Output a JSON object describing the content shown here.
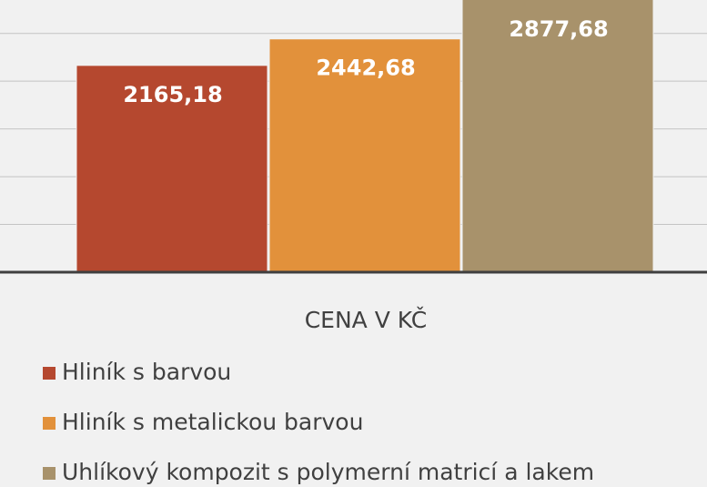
{
  "chart_data": {
    "type": "bar",
    "categories": [
      "CENA V KČ"
    ],
    "series": [
      {
        "name": "Hliník s barvou",
        "color": "#b5482f",
        "values": [
          2165.18
        ],
        "value_labels": [
          "2165,18"
        ]
      },
      {
        "name": "Hliník s metalickou barvou",
        "color": "#e2913b",
        "values": [
          2442.68
        ],
        "value_labels": [
          "2442,68"
        ]
      },
      {
        "name": "Uhlíkový kompozit s polymerní matricí a lakem",
        "color": "#a8926b",
        "values": [
          2877.68
        ],
        "value_labels": [
          "2877,68"
        ]
      }
    ],
    "ylim": [
      0,
      2850
    ],
    "yticks": [
      500,
      1000,
      1500,
      2000,
      2500
    ],
    "grid": true,
    "legend": "bottom"
  }
}
